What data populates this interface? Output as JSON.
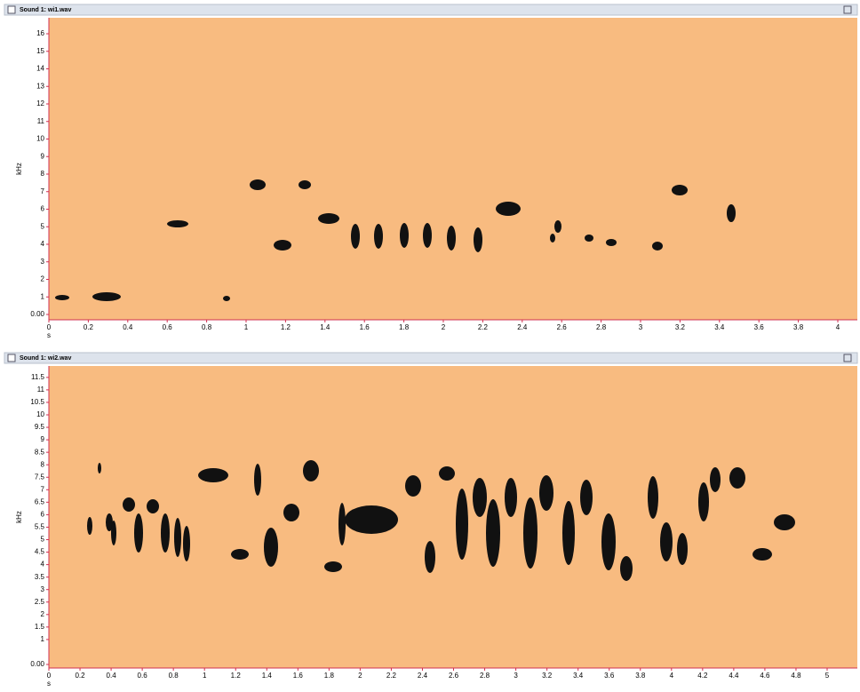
{
  "windows": [
    {
      "title": "Sound 1: wi1.wav",
      "y_label": "kHz",
      "x_label": "s",
      "y_ticks": [
        {
          "value": 0,
          "label": "0.00"
        },
        1,
        2,
        3,
        4,
        5,
        6,
        7,
        8,
        9,
        10,
        11,
        12,
        13,
        14,
        15,
        16
      ],
      "x_ticks": [
        0,
        0.2,
        0.4,
        0.6,
        0.8,
        1,
        1.2,
        1.4,
        1.6,
        1.8,
        2,
        2.2,
        2.4,
        2.6,
        2.8,
        3,
        3.2,
        3.4,
        3.6,
        3.8,
        4
      ]
    },
    {
      "title": "Sound 1: wi2.wav",
      "y_label": "kHz",
      "x_label": "s",
      "y_ticks": [
        {
          "value": 0,
          "label": "0.00"
        },
        1,
        1.5,
        2,
        2.5,
        3,
        3.5,
        4,
        4.5,
        5,
        5.5,
        6,
        6.5,
        7,
        7.5,
        8,
        8.5,
        9,
        9.5,
        10,
        10.5,
        11,
        11.5
      ],
      "x_ticks": [
        0,
        0.2,
        0.4,
        0.6,
        0.8,
        1,
        1.2,
        1.4,
        1.6,
        1.8,
        2,
        2.2,
        2.4,
        2.6,
        2.8,
        3,
        3.2,
        3.4,
        3.6,
        3.8,
        4,
        4.2,
        4.4,
        4.6,
        4.8,
        5
      ]
    }
  ]
}
